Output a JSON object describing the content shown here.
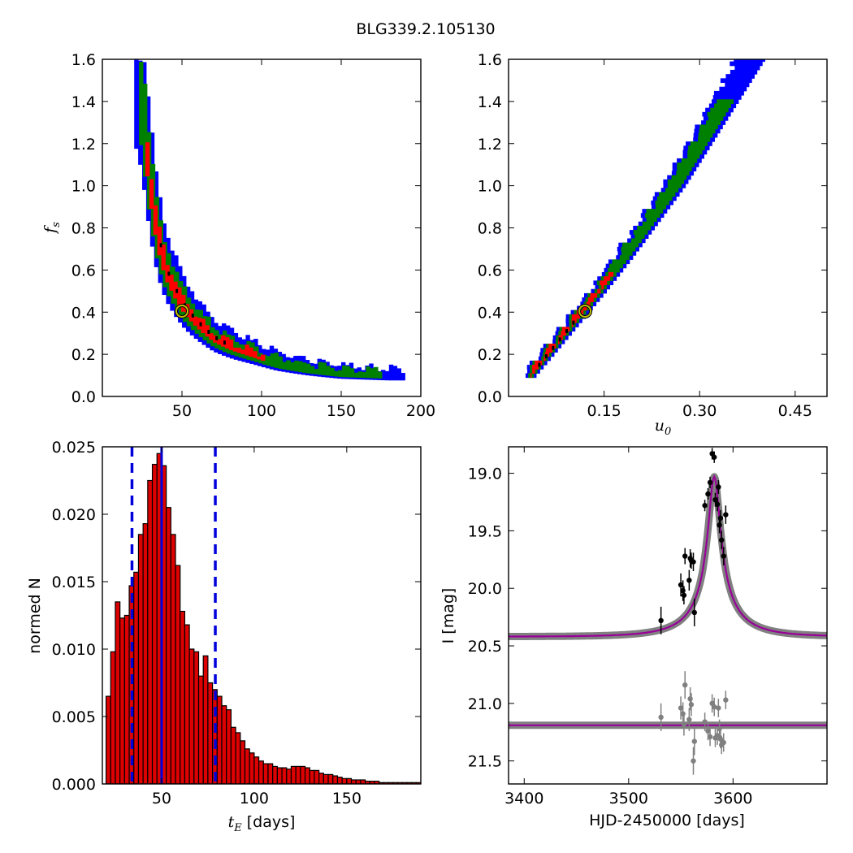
{
  "figure_title": "BLG339.2.105130",
  "colors": {
    "blue": "#0000ff",
    "green": "#008000",
    "red": "#ff0000",
    "black": "#000000",
    "marker_ring": "#bfbf00",
    "model": "#990099",
    "model_band": "#808080",
    "hist_fill": "#dd0000",
    "vline": "#0000dd",
    "resid": "#808080"
  },
  "chart_data": [
    {
      "id": "fs-vs-tE",
      "type": "heatmap",
      "title": "",
      "xlabel": "",
      "ylabel": "f_s",
      "xlim": [
        0,
        200
      ],
      "ylim": [
        0.0,
        1.6
      ],
      "x_ticks": [
        50,
        100,
        150,
        200
      ],
      "y_ticks": [
        0.0,
        0.2,
        0.4,
        0.6,
        0.8,
        1.0,
        1.2,
        1.4,
        1.6
      ],
      "region_levels": [
        "blue",
        "green",
        "red",
        "black"
      ],
      "ridge": [
        [
          20,
          1.6
        ],
        [
          25,
          1.4
        ],
        [
          28,
          1.15
        ],
        [
          31,
          0.95
        ],
        [
          35,
          0.75
        ],
        [
          40,
          0.6
        ],
        [
          46,
          0.5
        ],
        [
          52,
          0.42
        ],
        [
          60,
          0.35
        ],
        [
          70,
          0.28
        ],
        [
          80,
          0.24
        ],
        [
          95,
          0.2
        ],
        [
          110,
          0.16
        ],
        [
          130,
          0.13
        ],
        [
          150,
          0.11
        ],
        [
          180,
          0.1
        ]
      ],
      "widths": [
        0.55,
        0.36,
        0.16
      ],
      "x_range": [
        [
          20,
          190
        ],
        [
          23,
          175
        ],
        [
          27,
          100
        ]
      ],
      "best_fit": {
        "x": 50,
        "y": 0.405
      }
    },
    {
      "id": "fs-vs-u0",
      "type": "heatmap",
      "title": "",
      "xlabel": "u_0",
      "ylabel": "",
      "xlim": [
        0.0,
        0.5
      ],
      "ylim": [
        0.0,
        1.6
      ],
      "x_ticks": [
        0.15,
        0.3,
        0.45
      ],
      "y_ticks": [
        0.0,
        0.2,
        0.4,
        0.6,
        0.8,
        1.0,
        1.2,
        1.4,
        1.6
      ],
      "region_levels": [
        "blue",
        "green",
        "red",
        "black"
      ],
      "ridge": [
        [
          0.03,
          0.09
        ],
        [
          0.06,
          0.2
        ],
        [
          0.1,
          0.35
        ],
        [
          0.14,
          0.5
        ],
        [
          0.18,
          0.66
        ],
        [
          0.22,
          0.83
        ],
        [
          0.26,
          1.0
        ],
        [
          0.3,
          1.2
        ],
        [
          0.34,
          1.4
        ],
        [
          0.38,
          1.6
        ]
      ],
      "widths": [
        0.035,
        0.022,
        0.011
      ],
      "y_range": [
        [
          0.09,
          1.6
        ],
        [
          0.09,
          1.4
        ],
        [
          0.09,
          0.58
        ]
      ],
      "best_fit": {
        "x": 0.12,
        "y": 0.405
      }
    },
    {
      "id": "tE-histogram",
      "type": "bar",
      "title": "",
      "xlabel": "t_E [days]",
      "ylabel": "normed N",
      "xlim": [
        18,
        190
      ],
      "ylim": [
        0.0,
        0.025
      ],
      "x_ticks": [
        50,
        100,
        150
      ],
      "y_ticks": [
        0.0,
        0.005,
        0.01,
        0.015,
        0.02,
        0.025
      ],
      "y_tick_labels": [
        "0.000",
        "0.005",
        "0.010",
        "0.015",
        "0.020",
        "0.025"
      ],
      "bin_width": 2.5,
      "bin_start": 20,
      "values": [
        0.0065,
        0.0098,
        0.0135,
        0.0123,
        0.0125,
        0.0147,
        0.0157,
        0.0185,
        0.0193,
        0.0225,
        0.0237,
        0.0245,
        0.0236,
        0.0205,
        0.0185,
        0.0162,
        0.0128,
        0.0118,
        0.01,
        0.0098,
        0.008,
        0.0095,
        0.0075,
        0.007,
        0.0065,
        0.0058,
        0.0055,
        0.0042,
        0.0038,
        0.0032,
        0.0026,
        0.0023,
        0.002,
        0.0017,
        0.0015,
        0.0015,
        0.0013,
        0.0012,
        0.0012,
        0.0011,
        0.0013,
        0.0013,
        0.0013,
        0.0012,
        0.001,
        0.001,
        0.0008,
        0.0007,
        0.0007,
        0.0006,
        0.0005,
        0.0004,
        0.0004,
        0.0003,
        0.0003,
        0.0003,
        0.0002,
        0.0002,
        0.0002,
        0.0001,
        0.0001,
        0.0001,
        0.0001,
        0.0001,
        0.0001,
        0.0001,
        0.0001,
        0.0001
      ],
      "vlines": {
        "median": 50,
        "lower": 34,
        "upper": 79
      }
    },
    {
      "id": "lightcurve",
      "type": "scatter",
      "title": "",
      "xlabel": "HJD-2450000 [days]",
      "ylabel": "I [mag]",
      "xlim": [
        3385,
        3690
      ],
      "ylim": [
        21.7,
        18.77
      ],
      "x_ticks": [
        3400,
        3500,
        3600
      ],
      "y_ticks": [
        19.0,
        19.5,
        20.0,
        20.5,
        21.0,
        21.5
      ],
      "y_tick_labels": [
        "19.0",
        "19.5",
        "20.0",
        "20.5",
        "21.0",
        "21.5"
      ],
      "model": {
        "t0": 3582,
        "tE": 50,
        "u0": 0.12,
        "baseline": 20.42,
        "peak": 19.03
      },
      "residual_baseline": 21.19,
      "points": [
        {
          "x": 3531,
          "y": 20.28,
          "err": 0.12
        },
        {
          "x": 3550,
          "y": 19.97,
          "err": 0.1
        },
        {
          "x": 3552,
          "y": 20.02,
          "err": 0.09
        },
        {
          "x": 3553,
          "y": 20.06,
          "err": 0.08
        },
        {
          "x": 3554,
          "y": 19.72,
          "err": 0.07
        },
        {
          "x": 3558,
          "y": 19.93,
          "err": 0.09
        },
        {
          "x": 3559,
          "y": 19.74,
          "err": 0.08
        },
        {
          "x": 3560,
          "y": 19.76,
          "err": 0.07
        },
        {
          "x": 3562,
          "y": 19.77,
          "err": 0.08
        },
        {
          "x": 3563,
          "y": 20.21,
          "err": 0.12
        },
        {
          "x": 3573,
          "y": 19.28,
          "err": 0.05
        },
        {
          "x": 3576,
          "y": 19.18,
          "err": 0.05
        },
        {
          "x": 3578,
          "y": 19.08,
          "err": 0.05
        },
        {
          "x": 3580,
          "y": 18.83,
          "err": 0.05
        },
        {
          "x": 3582,
          "y": 18.86,
          "err": 0.05
        },
        {
          "x": 3583,
          "y": 19.23,
          "err": 0.06
        },
        {
          "x": 3585,
          "y": 19.27,
          "err": 0.06
        },
        {
          "x": 3586,
          "y": 19.12,
          "err": 0.06
        },
        {
          "x": 3587,
          "y": 19.45,
          "err": 0.07
        },
        {
          "x": 3588,
          "y": 19.39,
          "err": 0.07
        },
        {
          "x": 3589,
          "y": 19.58,
          "err": 0.08
        },
        {
          "x": 3591,
          "y": 19.72,
          "err": 0.08
        },
        {
          "x": 3593,
          "y": 19.36,
          "err": 0.08
        }
      ],
      "residuals": [
        {
          "x": 3531,
          "y": 21.12,
          "err": 0.12
        },
        {
          "x": 3550,
          "y": 21.04,
          "err": 0.1
        },
        {
          "x": 3552,
          "y": 21.09,
          "err": 0.1
        },
        {
          "x": 3553,
          "y": 21.18,
          "err": 0.1
        },
        {
          "x": 3554,
          "y": 20.84,
          "err": 0.12
        },
        {
          "x": 3558,
          "y": 21.14,
          "err": 0.1
        },
        {
          "x": 3559,
          "y": 20.96,
          "err": 0.1
        },
        {
          "x": 3560,
          "y": 21.01,
          "err": 0.1
        },
        {
          "x": 3562,
          "y": 21.5,
          "err": 0.12
        },
        {
          "x": 3563,
          "y": 21.33,
          "err": 0.12
        },
        {
          "x": 3573,
          "y": 21.16,
          "err": 0.08
        },
        {
          "x": 3576,
          "y": 21.24,
          "err": 0.08
        },
        {
          "x": 3578,
          "y": 21.29,
          "err": 0.08
        },
        {
          "x": 3580,
          "y": 21.0,
          "err": 0.08
        },
        {
          "x": 3582,
          "y": 21.03,
          "err": 0.08
        },
        {
          "x": 3583,
          "y": 21.3,
          "err": 0.08
        },
        {
          "x": 3585,
          "y": 21.28,
          "err": 0.08
        },
        {
          "x": 3586,
          "y": 21.04,
          "err": 0.08
        },
        {
          "x": 3587,
          "y": 21.22,
          "err": 0.08
        },
        {
          "x": 3588,
          "y": 21.31,
          "err": 0.08
        },
        {
          "x": 3589,
          "y": 21.36,
          "err": 0.08
        },
        {
          "x": 3591,
          "y": 21.34,
          "err": 0.08
        },
        {
          "x": 3593,
          "y": 20.97,
          "err": 0.08
        }
      ]
    }
  ]
}
